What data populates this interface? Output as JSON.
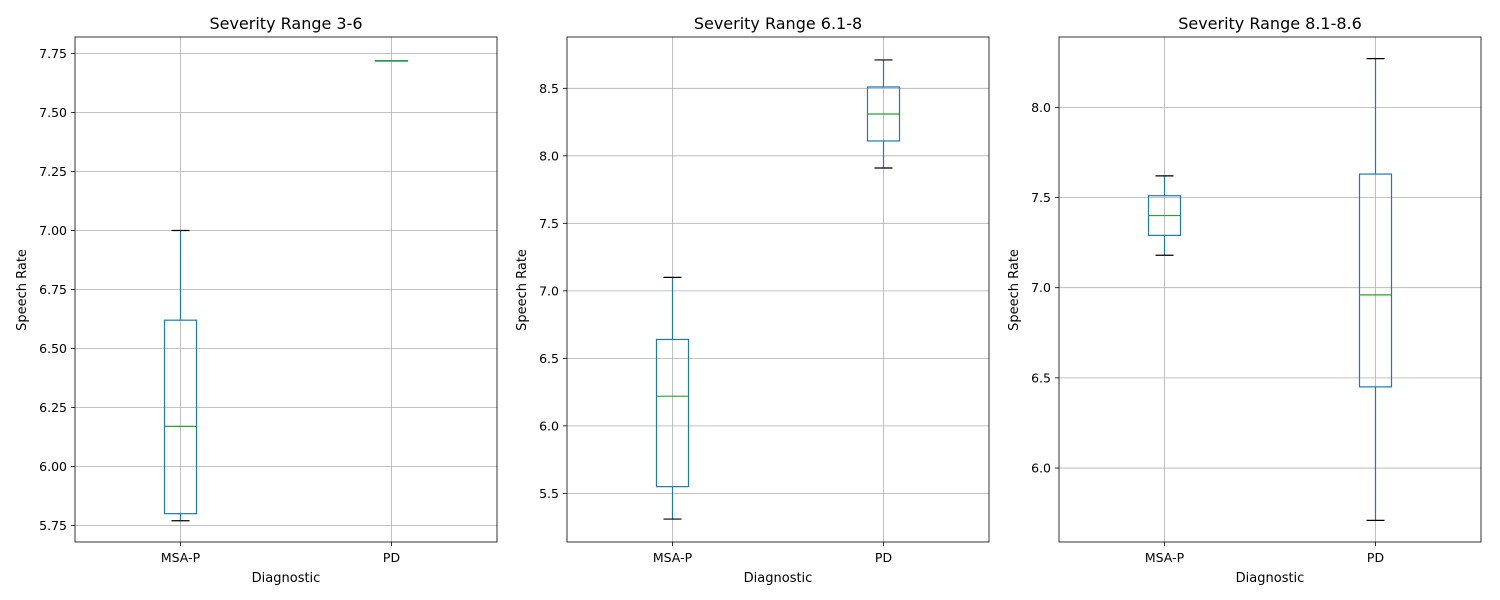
{
  "chart_data": [
    {
      "type": "box",
      "title": "Severity Range 3-6",
      "xlabel": "Diagnostic",
      "ylabel": "Speech Rate",
      "ylim": [
        5.68,
        7.82
      ],
      "yticks": [
        "5.75",
        "6.00",
        "6.25",
        "6.50",
        "6.75",
        "7.00",
        "7.25",
        "7.50",
        "7.75"
      ],
      "grid": true,
      "categories": [
        "MSA-P",
        "PD"
      ],
      "boxes": [
        {
          "category": "MSA-P",
          "whisker_low": 5.77,
          "q1": 5.8,
          "median": 6.17,
          "q3": 6.62,
          "whisker_high": 7.0
        },
        {
          "category": "PD",
          "whisker_low": 7.72,
          "q1": 7.72,
          "median": 7.72,
          "q3": 7.72,
          "whisker_high": 7.72
        }
      ]
    },
    {
      "type": "box",
      "title": "Severity Range 6.1-8",
      "xlabel": "Diagnostic",
      "ylabel": "Speech Rate",
      "ylim": [
        5.14,
        8.88
      ],
      "yticks": [
        "5.5",
        "6.0",
        "6.5",
        "7.0",
        "7.5",
        "8.0",
        "8.5"
      ],
      "grid": true,
      "categories": [
        "MSA-P",
        "PD"
      ],
      "boxes": [
        {
          "category": "MSA-P",
          "whisker_low": 5.31,
          "q1": 5.55,
          "median": 6.22,
          "q3": 6.64,
          "whisker_high": 7.1
        },
        {
          "category": "PD",
          "whisker_low": 7.91,
          "q1": 8.11,
          "median": 8.31,
          "q3": 8.51,
          "whisker_high": 8.71
        }
      ]
    },
    {
      "type": "box",
      "title": "Severity Range 8.1-8.6",
      "xlabel": "Diagnostic",
      "ylabel": "Speech Rate",
      "ylim": [
        5.59,
        8.39
      ],
      "yticks": [
        "6.0",
        "6.5",
        "7.0",
        "7.5",
        "8.0"
      ],
      "grid": true,
      "categories": [
        "MSA-P",
        "PD"
      ],
      "boxes": [
        {
          "category": "MSA-P",
          "whisker_low": 7.18,
          "q1": 7.29,
          "median": 7.4,
          "q3": 7.51,
          "whisker_high": 7.62
        },
        {
          "category": "PD",
          "whisker_low": 5.71,
          "q1": 6.45,
          "median": 6.96,
          "q3": 7.63,
          "whisker_high": 8.27
        }
      ]
    }
  ],
  "colors": {
    "box": "#1f77b4",
    "median": "#2ca02c",
    "whisker_cap": "#000000",
    "grid": "#b0b0b0",
    "axes": "#000000"
  }
}
